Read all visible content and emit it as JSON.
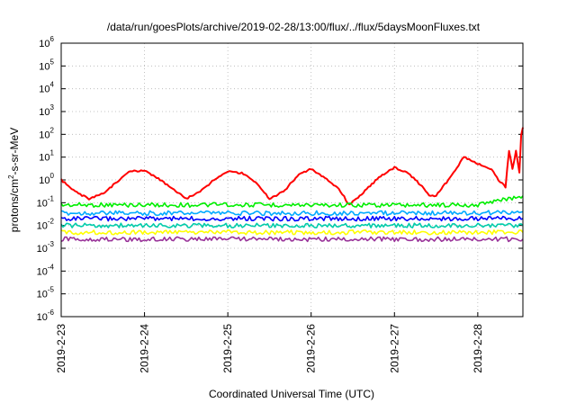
{
  "chart_data": {
    "type": "line",
    "title": "/data/run/goesPlots/archive/2019-02-28/13:00/flux/../flux/5daysMoonFluxes.txt",
    "xlabel": "Coordinated Universal Time (UTC)",
    "ylabel": {
      "base": "protons/cm",
      "sup": "2",
      "rest": "-s-sr-MeV"
    },
    "y_scale": "log",
    "ylim_exp": [
      -6,
      6
    ],
    "y_ticks": [
      {
        "base": "10",
        "exp": "-6"
      },
      {
        "base": "10",
        "exp": "-5"
      },
      {
        "base": "10",
        "exp": "-4"
      },
      {
        "base": "10",
        "exp": "-3"
      },
      {
        "base": "10",
        "exp": "-2"
      },
      {
        "base": "10",
        "exp": "-1"
      },
      {
        "base": "10",
        "exp": "0"
      },
      {
        "base": "10",
        "exp": "1"
      },
      {
        "base": "10",
        "exp": "2"
      },
      {
        "base": "10",
        "exp": "3"
      },
      {
        "base": "10",
        "exp": "4"
      },
      {
        "base": "10",
        "exp": "5"
      },
      {
        "base": "10",
        "exp": "6"
      }
    ],
    "x_ticks": [
      "2019-2-23",
      "2019-2-24",
      "2019-2-25",
      "2019-2-26",
      "2019-2-27",
      "2019-2-28"
    ],
    "xlim": [
      "2019-02-23 00:00",
      "2019-02-28 13:00"
    ],
    "grid": true,
    "series": [
      {
        "color": "#ff0000",
        "points": [
          [
            "2019-02-23 00:00",
            1.0
          ],
          [
            "2019-02-23 04:00",
            0.3
          ],
          [
            "2019-02-23 08:00",
            0.15
          ],
          [
            "2019-02-23 12:00",
            0.25
          ],
          [
            "2019-02-23 16:00",
            0.8
          ],
          [
            "2019-02-23 20:00",
            2.5
          ],
          [
            "2019-02-24 00:00",
            2.5
          ],
          [
            "2019-02-24 04:00",
            1.2
          ],
          [
            "2019-02-24 08:00",
            0.4
          ],
          [
            "2019-02-24 12:00",
            0.15
          ],
          [
            "2019-02-24 16:00",
            0.3
          ],
          [
            "2019-02-24 20:00",
            1.0
          ],
          [
            "2019-02-25 00:00",
            2.5
          ],
          [
            "2019-02-25 04:00",
            2.0
          ],
          [
            "2019-02-25 08:00",
            0.8
          ],
          [
            "2019-02-25 12:00",
            0.15
          ],
          [
            "2019-02-25 16:00",
            0.3
          ],
          [
            "2019-02-25 20:00",
            1.5
          ],
          [
            "2019-02-26 00:00",
            3.0
          ],
          [
            "2019-02-26 04:00",
            1.2
          ],
          [
            "2019-02-26 08:00",
            0.4
          ],
          [
            "2019-02-26 11:00",
            0.08
          ],
          [
            "2019-02-26 14:00",
            0.2
          ],
          [
            "2019-02-26 20:00",
            1.5
          ],
          [
            "2019-02-27 00:00",
            3.5
          ],
          [
            "2019-02-27 04:00",
            2.0
          ],
          [
            "2019-02-27 08:00",
            0.5
          ],
          [
            "2019-02-27 10:00",
            0.2
          ],
          [
            "2019-02-27 12:00",
            0.2
          ],
          [
            "2019-02-27 14:00",
            0.5
          ],
          [
            "2019-02-27 17:00",
            2.0
          ],
          [
            "2019-02-27 20:00",
            10
          ],
          [
            "2019-02-28 00:00",
            5.0
          ],
          [
            "2019-02-28 04:00",
            3.0
          ],
          [
            "2019-02-28 06:00",
            1.0
          ],
          [
            "2019-02-28 08:00",
            0.5
          ],
          [
            "2019-02-28 09:00",
            20
          ],
          [
            "2019-02-28 10:00",
            3.0
          ],
          [
            "2019-02-28 11:00",
            20
          ],
          [
            "2019-02-28 12:00",
            2.0
          ],
          [
            "2019-02-28 12:30",
            100
          ],
          [
            "2019-02-28 13:00",
            200
          ]
        ]
      },
      {
        "color": "#00ee00",
        "points": [
          [
            "2019-02-23 00:00",
            0.08
          ],
          [
            "2019-02-24 00:00",
            0.08
          ],
          [
            "2019-02-25 00:00",
            0.08
          ],
          [
            "2019-02-26 00:00",
            0.08
          ],
          [
            "2019-02-27 00:00",
            0.08
          ],
          [
            "2019-02-28 00:00",
            0.08
          ],
          [
            "2019-02-28 13:00",
            0.2
          ]
        ]
      },
      {
        "color": "#00aaff",
        "points": [
          [
            "2019-02-23 00:00",
            0.035
          ],
          [
            "2019-02-24 00:00",
            0.035
          ],
          [
            "2019-02-25 00:00",
            0.035
          ],
          [
            "2019-02-26 00:00",
            0.035
          ],
          [
            "2019-02-27 00:00",
            0.035
          ],
          [
            "2019-02-28 00:00",
            0.035
          ],
          [
            "2019-02-28 13:00",
            0.04
          ]
        ]
      },
      {
        "color": "#0000ff",
        "points": [
          [
            "2019-02-23 00:00",
            0.02
          ],
          [
            "2019-02-24 00:00",
            0.02
          ],
          [
            "2019-02-25 00:00",
            0.02
          ],
          [
            "2019-02-26 00:00",
            0.02
          ],
          [
            "2019-02-27 00:00",
            0.02
          ],
          [
            "2019-02-28 00:00",
            0.02
          ],
          [
            "2019-02-28 13:00",
            0.02
          ]
        ]
      },
      {
        "color": "#00ccaa",
        "points": [
          [
            "2019-02-23 00:00",
            0.01
          ],
          [
            "2019-02-24 00:00",
            0.01
          ],
          [
            "2019-02-25 00:00",
            0.01
          ],
          [
            "2019-02-26 00:00",
            0.01
          ],
          [
            "2019-02-27 00:00",
            0.01
          ],
          [
            "2019-02-28 00:00",
            0.01
          ],
          [
            "2019-02-28 13:00",
            0.01
          ]
        ]
      },
      {
        "color": "#ffff00",
        "points": [
          [
            "2019-02-23 00:00",
            0.005
          ],
          [
            "2019-02-24 00:00",
            0.005
          ],
          [
            "2019-02-25 00:00",
            0.005
          ],
          [
            "2019-02-26 00:00",
            0.005
          ],
          [
            "2019-02-27 00:00",
            0.005
          ],
          [
            "2019-02-28 00:00",
            0.005
          ],
          [
            "2019-02-28 13:00",
            0.005
          ]
        ]
      },
      {
        "color": "#993399",
        "points": [
          [
            "2019-02-23 00:00",
            0.0025
          ],
          [
            "2019-02-24 00:00",
            0.0025
          ],
          [
            "2019-02-25 00:00",
            0.0025
          ],
          [
            "2019-02-26 00:00",
            0.0025
          ],
          [
            "2019-02-27 00:00",
            0.0025
          ],
          [
            "2019-02-28 00:00",
            0.0025
          ],
          [
            "2019-02-28 13:00",
            0.0025
          ]
        ]
      }
    ]
  }
}
